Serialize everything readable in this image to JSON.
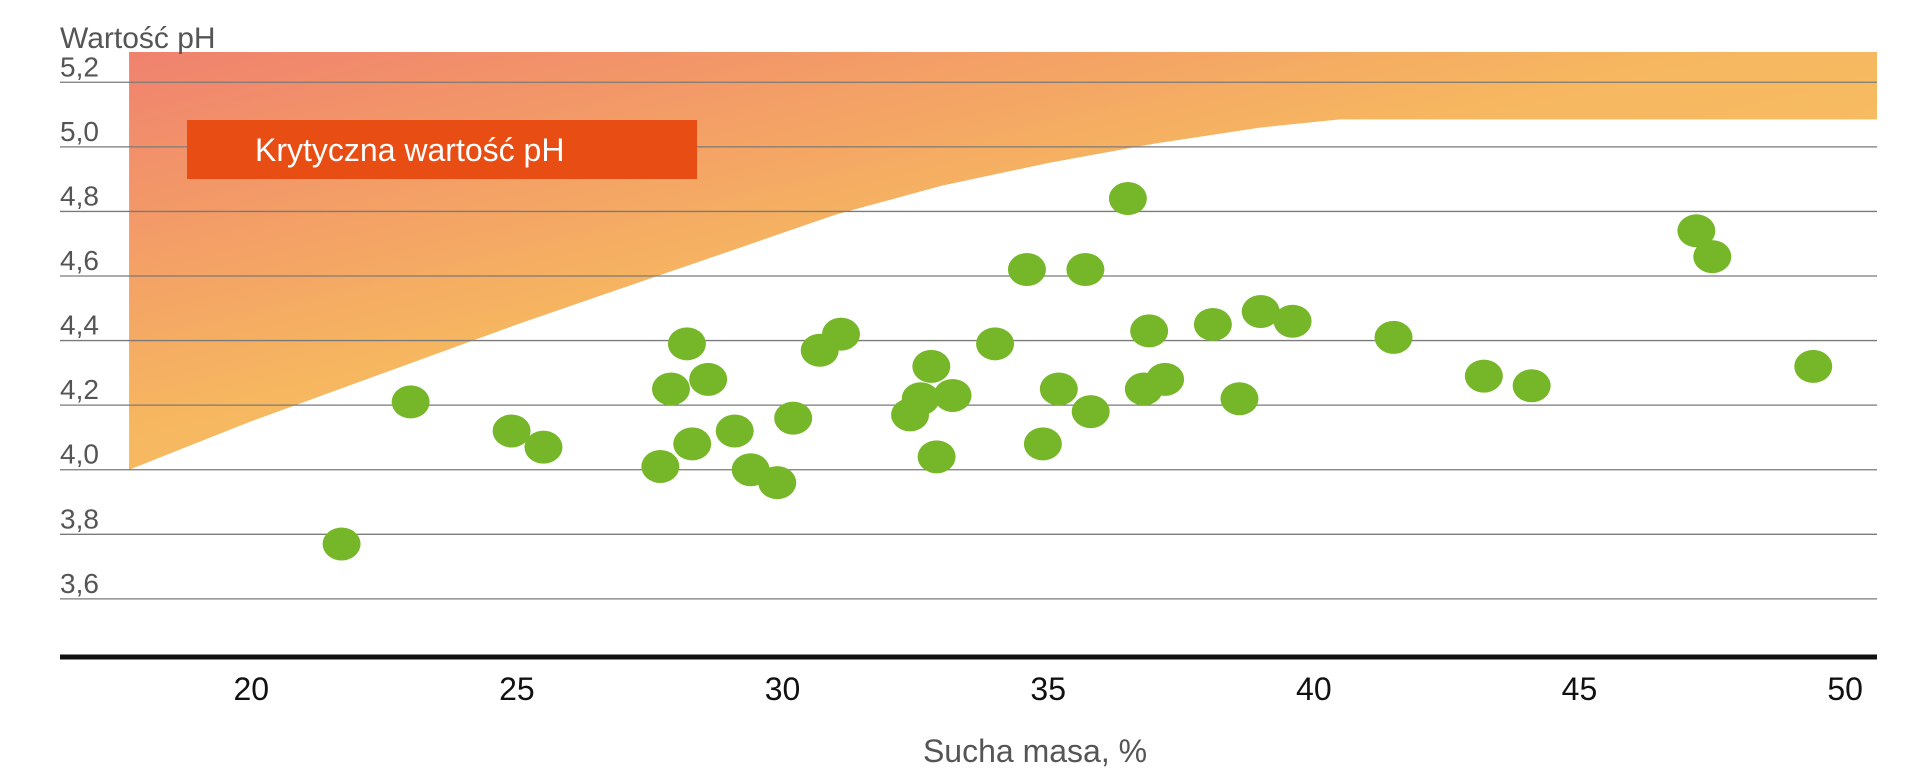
{
  "chart_data": {
    "type": "scatter",
    "ylabel": "Wartość pH",
    "xlabel": "Sucha masa, %",
    "xlim": [
      16.4,
      50.6
    ],
    "ylim": [
      3.42,
      5.3
    ],
    "x_ticks": [
      {
        "value": 20,
        "label": "20"
      },
      {
        "value": 25,
        "label": "25"
      },
      {
        "value": 30,
        "label": "30"
      },
      {
        "value": 35,
        "label": "35"
      },
      {
        "value": 40,
        "label": "40"
      },
      {
        "value": 45,
        "label": "45"
      },
      {
        "value": 50,
        "label": "50"
      }
    ],
    "y_ticks": [
      {
        "value": 3.6,
        "label": "3,6"
      },
      {
        "value": 3.8,
        "label": "3,8"
      },
      {
        "value": 4.0,
        "label": "4,0"
      },
      {
        "value": 4.2,
        "label": "4,2"
      },
      {
        "value": 4.4,
        "label": "4,4"
      },
      {
        "value": 4.6,
        "label": "4,6"
      },
      {
        "value": 4.8,
        "label": "4,8"
      },
      {
        "value": 5.0,
        "label": "5,0"
      },
      {
        "value": 5.2,
        "label": "5,2"
      }
    ],
    "grid": true,
    "critical_zone": {
      "label": "Krytyczna wartość pH",
      "boundary": [
        {
          "x": 17.7,
          "y": 4.0
        },
        {
          "x": 20,
          "y": 4.15
        },
        {
          "x": 25,
          "y": 4.45
        },
        {
          "x": 28,
          "y": 4.62
        },
        {
          "x": 31,
          "y": 4.79
        },
        {
          "x": 33,
          "y": 4.88
        },
        {
          "x": 35,
          "y": 4.95
        },
        {
          "x": 37,
          "y": 5.01
        },
        {
          "x": 39,
          "y": 5.06
        },
        {
          "x": 40.5,
          "y": 5.085
        },
        {
          "x": 50.6,
          "y": 5.085
        }
      ],
      "top": 5.3,
      "colors": [
        "#f0826e",
        "#f6b760",
        "#fac865"
      ]
    },
    "annotation_color": "#e84d14",
    "point_color": "#76b72a",
    "points": [
      {
        "x": 21.7,
        "y": 3.77
      },
      {
        "x": 23.0,
        "y": 4.21
      },
      {
        "x": 24.9,
        "y": 4.12
      },
      {
        "x": 25.5,
        "y": 4.07
      },
      {
        "x": 27.7,
        "y": 4.01
      },
      {
        "x": 27.9,
        "y": 4.25
      },
      {
        "x": 28.2,
        "y": 4.39
      },
      {
        "x": 28.3,
        "y": 4.08
      },
      {
        "x": 28.6,
        "y": 4.28
      },
      {
        "x": 29.1,
        "y": 4.12
      },
      {
        "x": 29.4,
        "y": 4.0
      },
      {
        "x": 29.9,
        "y": 3.96
      },
      {
        "x": 30.2,
        "y": 4.16
      },
      {
        "x": 30.7,
        "y": 4.37
      },
      {
        "x": 31.1,
        "y": 4.42
      },
      {
        "x": 32.4,
        "y": 4.17
      },
      {
        "x": 32.6,
        "y": 4.22
      },
      {
        "x": 32.8,
        "y": 4.32
      },
      {
        "x": 32.9,
        "y": 4.04
      },
      {
        "x": 33.2,
        "y": 4.23
      },
      {
        "x": 34.0,
        "y": 4.39
      },
      {
        "x": 34.6,
        "y": 4.62
      },
      {
        "x": 34.9,
        "y": 4.08
      },
      {
        "x": 35.2,
        "y": 4.25
      },
      {
        "x": 35.7,
        "y": 4.62
      },
      {
        "x": 35.8,
        "y": 4.18
      },
      {
        "x": 36.5,
        "y": 4.84
      },
      {
        "x": 36.8,
        "y": 4.25
      },
      {
        "x": 36.9,
        "y": 4.43
      },
      {
        "x": 37.2,
        "y": 4.28
      },
      {
        "x": 38.1,
        "y": 4.45
      },
      {
        "x": 38.6,
        "y": 4.22
      },
      {
        "x": 39.0,
        "y": 4.49
      },
      {
        "x": 39.6,
        "y": 4.46
      },
      {
        "x": 41.5,
        "y": 4.41
      },
      {
        "x": 43.2,
        "y": 4.29
      },
      {
        "x": 44.1,
        "y": 4.26
      },
      {
        "x": 47.2,
        "y": 4.74
      },
      {
        "x": 47.5,
        "y": 4.66
      },
      {
        "x": 49.4,
        "y": 4.32
      }
    ]
  }
}
